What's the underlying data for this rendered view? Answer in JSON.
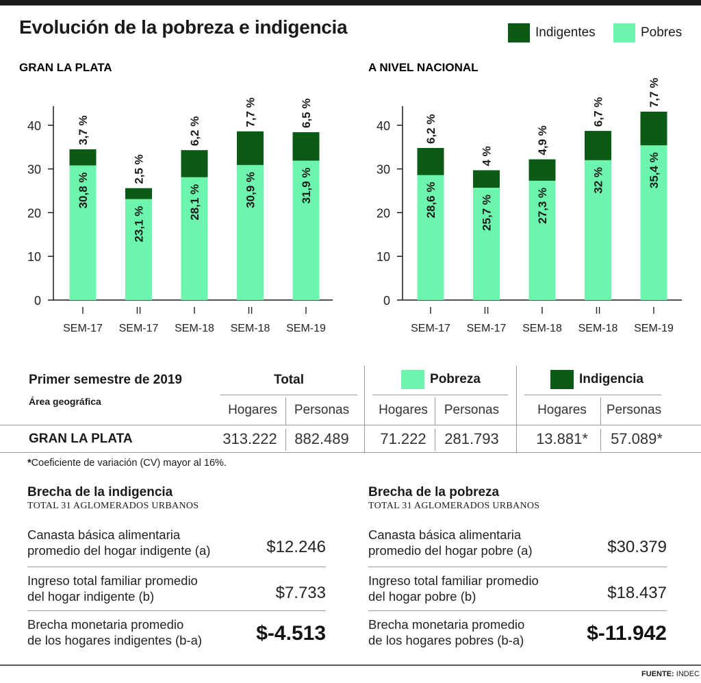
{
  "title": "Evolución de la pobreza e indigencia",
  "legend": {
    "indigentes": "Indigentes",
    "pobres": "Pobres"
  },
  "colors": {
    "indigentes": "#0b5a16",
    "pobres": "#6ef5ad",
    "axis": "#1a1a1a"
  },
  "chart_data": [
    {
      "type": "bar",
      "stacked": true,
      "title": "GRAN LA PLATA",
      "categories_top": [
        "I",
        "II",
        "I",
        "II",
        "I"
      ],
      "categories": [
        "SEM-17",
        "SEM-17",
        "SEM-18",
        "SEM-18",
        "SEM-19"
      ],
      "yticks": [
        "0",
        "10",
        "20",
        "30",
        "40"
      ],
      "ylim": [
        0,
        45
      ],
      "series": [
        {
          "name": "Pobres",
          "values": [
            30.8,
            23.1,
            28.1,
            30.9,
            31.9
          ],
          "labels": [
            "30,8 %",
            "23,1 %",
            "28,1 %",
            "30,9 %",
            "31,9 %"
          ]
        },
        {
          "name": "Indigentes",
          "values": [
            3.7,
            2.5,
            6.2,
            7.7,
            6.5
          ],
          "labels": [
            "3,7 %",
            "2,5 %",
            "6,2 %",
            "7,7 %",
            "6,5 %"
          ]
        }
      ]
    },
    {
      "type": "bar",
      "stacked": true,
      "title": "A NIVEL NACIONAL",
      "categories_top": [
        "I",
        "II",
        "I",
        "II",
        "I"
      ],
      "categories": [
        "SEM-17",
        "SEM-17",
        "SEM-18",
        "SEM-18",
        "SEM-19"
      ],
      "yticks": [
        "0",
        "10",
        "20",
        "30",
        "40"
      ],
      "ylim": [
        0,
        45
      ],
      "series": [
        {
          "name": "Pobres",
          "values": [
            28.6,
            25.7,
            27.3,
            32,
            35.4
          ],
          "labels": [
            "28,6 %",
            "25,7 %",
            "27,3 %",
            "32 %",
            "35,4 %"
          ]
        },
        {
          "name": "Indigentes",
          "values": [
            6.2,
            4,
            4.9,
            6.7,
            7.7
          ],
          "labels": [
            "6,2 %",
            "4 %",
            "4,9 %",
            "6,7 %",
            "7,7 %"
          ]
        }
      ]
    }
  ],
  "table": {
    "heading": "Primer semestre de 2019",
    "area_label": "Área geográfica",
    "group_total": "Total",
    "group_pobreza": "Pobreza",
    "group_indigencia": "Indigencia",
    "col_hogares": "Hogares",
    "col_personas": "Personas",
    "row_label": "GRAN LA PLATA",
    "total_hogares": "313.222",
    "total_personas": "882.489",
    "pobreza_hogares": "71.222",
    "pobreza_personas": "281.793",
    "indigencia_hogares": "13.881*",
    "indigencia_personas": "57.089*",
    "footnote_mark": "*",
    "footnote": "Coeficiente de variación (CV) mayor al 16%."
  },
  "gap_indigencia": {
    "title": "Brecha de la indigencia",
    "subtitle": "TOTAL 31 AGLOMERADOS URBANOS",
    "rows": [
      {
        "line1": "Canasta básica alimentaria",
        "line2": "promedio del hogar indigente (a)",
        "value": "$12.246"
      },
      {
        "line1": "Ingreso total familiar promedio",
        "line2": "del hogar indigente (b)",
        "value": "$7.733"
      },
      {
        "line1": "Brecha monetaria promedio",
        "line2": "de los hogares indigentes (b-a)",
        "value": "$-4.513"
      }
    ]
  },
  "gap_pobreza": {
    "title": "Brecha de la pobreza",
    "subtitle": "TOTAL 31 AGLOMERADOS URBANOS",
    "rows": [
      {
        "line1": "Canasta básica alimentaria",
        "line2": "promedio del hogar pobre (a)",
        "value": "$30.379"
      },
      {
        "line1": "Ingreso total familiar promedio",
        "line2": "del hogar pobre (b)",
        "value": "$18.437"
      },
      {
        "line1": "Brecha monetaria promedio",
        "line2": "de los hogares pobres (b-a)",
        "value": "$-11.942"
      }
    ]
  },
  "source": {
    "label": "FUENTE:",
    "value": "INDEC"
  }
}
